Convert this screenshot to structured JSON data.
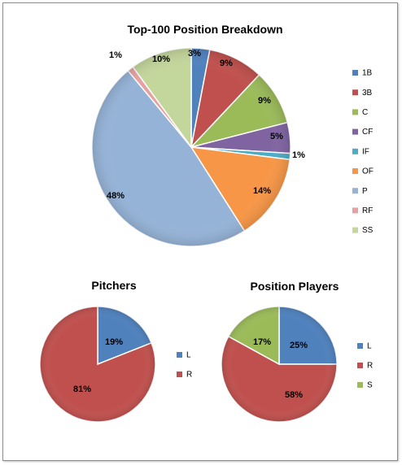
{
  "chart_data": [
    {
      "type": "pie",
      "title": "Top-100 Position Breakdown",
      "categories": [
        "1B",
        "3B",
        "C",
        "CF",
        "IF",
        "OF",
        "P",
        "RF",
        "SS"
      ],
      "values": [
        3,
        9,
        9,
        5,
        1,
        14,
        48,
        1,
        10
      ],
      "labels": [
        "3%",
        "9%",
        "9%",
        "5%",
        "1%",
        "14%",
        "48%",
        "1%",
        "10%"
      ],
      "colors": [
        "#4f81bd",
        "#c0504d",
        "#9bbb59",
        "#8064a2",
        "#4bacc6",
        "#f79646",
        "#95b3d7",
        "#e6a2a1",
        "#c3d69b"
      ],
      "legend": "right"
    },
    {
      "type": "pie",
      "title": "Pitchers",
      "categories": [
        "L",
        "R"
      ],
      "values": [
        19,
        81
      ],
      "labels": [
        "19%",
        "81%"
      ],
      "colors": [
        "#4f81bd",
        "#c0504d"
      ],
      "legend": "right"
    },
    {
      "type": "pie",
      "title": "Position Players",
      "categories": [
        "L",
        "R",
        "S"
      ],
      "values": [
        25,
        58,
        17
      ],
      "labels": [
        "25%",
        "58%",
        "17%"
      ],
      "colors": [
        "#4f81bd",
        "#c0504d",
        "#9bbb59"
      ],
      "legend": "right"
    }
  ]
}
